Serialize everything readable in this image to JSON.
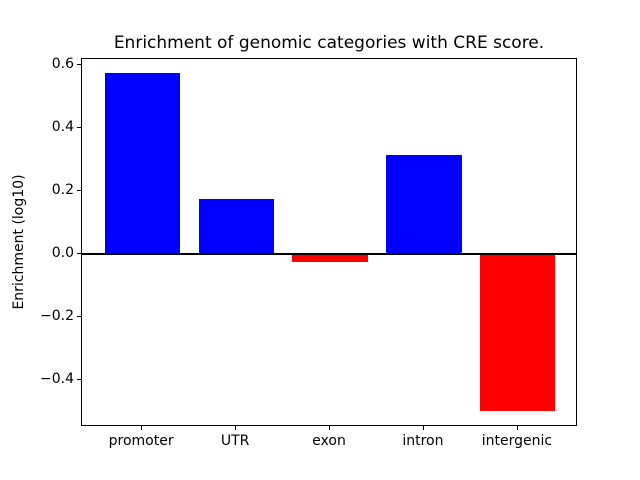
{
  "chart_data": {
    "type": "bar",
    "title": "Enrichment of genomic categories with CRE score.",
    "ylabel": "Enrichment (log10)",
    "xlabel": "",
    "categories": [
      "promoter",
      "UTR",
      "exon",
      "intron",
      "intergenic"
    ],
    "values": [
      0.575,
      0.175,
      -0.025,
      0.315,
      -0.5
    ],
    "bar_colors": [
      "#0000ff",
      "#0000ff",
      "#ff0000",
      "#0000ff",
      "#ff0000"
    ],
    "positive_color": "#0000ff",
    "negative_color": "#ff0000",
    "bar_width": 0.8,
    "ylim": [
      -0.55,
      0.62
    ],
    "xlim": [
      -0.64,
      4.64
    ],
    "yticks": [
      0.6,
      0.4,
      0.2,
      0.0,
      -0.2,
      -0.4
    ],
    "ytick_labels": [
      "0.6",
      "0.4",
      "0.2",
      "0.0",
      "−0.2",
      "−0.4"
    ],
    "zero_line": true,
    "grid": false,
    "legend": "none",
    "frame": "box"
  }
}
